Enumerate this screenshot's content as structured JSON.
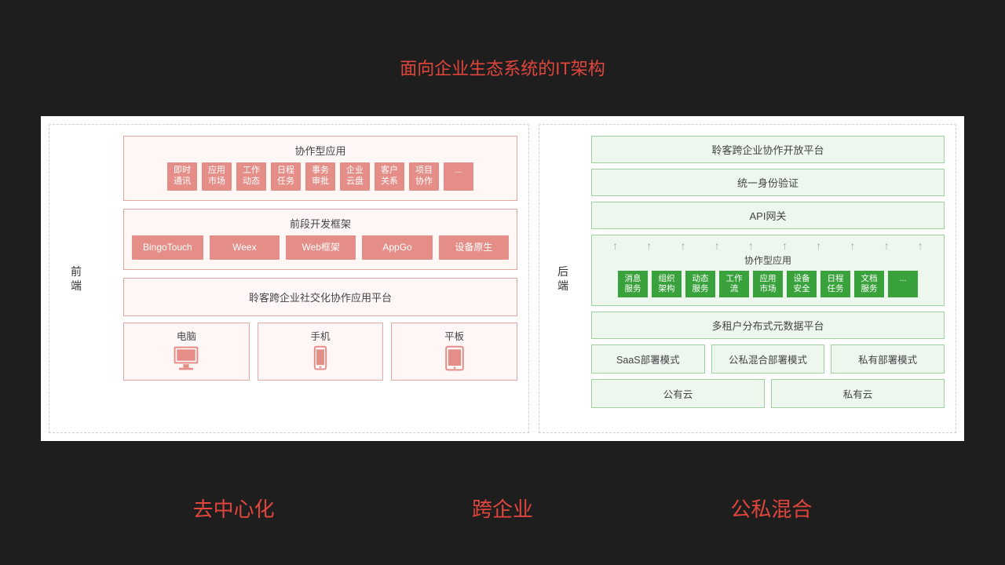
{
  "title": "面向企业生态系统的IT架构",
  "footer": [
    "去中心化",
    "跨企业",
    "公私混合"
  ],
  "left": {
    "vlabel": "前端",
    "apps_title": "协作型应用",
    "apps": [
      "即时\n通讯",
      "应用\n市场",
      "工作\n动态",
      "日程\n任务",
      "事务\n审批",
      "企业\n云盘",
      "客户\n关系",
      "项目\n协作",
      "..."
    ],
    "fw_title": "前段开发框架",
    "fw": [
      "BingoTouch",
      "Weex",
      "Web框架",
      "AppGo",
      "设备原生"
    ],
    "platform": "聆客跨企业社交化协作应用平台",
    "devices": [
      "电脑",
      "手机",
      "平板"
    ]
  },
  "right": {
    "vlabel": "后端",
    "rows_top": [
      "聆客跨企业协作开放平台",
      "统一身份验证",
      "API网关"
    ],
    "apps_title": "协作型应用",
    "apps": [
      "消息\n服务",
      "组织\n架构",
      "动态\n服务",
      "工作\n流",
      "应用\n市场",
      "设备\n安全",
      "日程\n任务",
      "文档\n服务",
      "..."
    ],
    "multi_tenant": "多租户分布式元数据平台",
    "deploy": [
      "SaaS部署模式",
      "公私混合部署模式",
      "私有部署模式"
    ],
    "cloud": [
      "公有云",
      "私有云"
    ]
  },
  "colors": {
    "bg": "#1e1e1e",
    "accent": "#e2453c",
    "pink_border": "#e9a5a1",
    "pink_fill": "#fef7f6",
    "pink_chip": "#e58e88",
    "green_border": "#9ed19f",
    "green_fill": "#edf7ed",
    "green_chip": "#3aa23c"
  }
}
